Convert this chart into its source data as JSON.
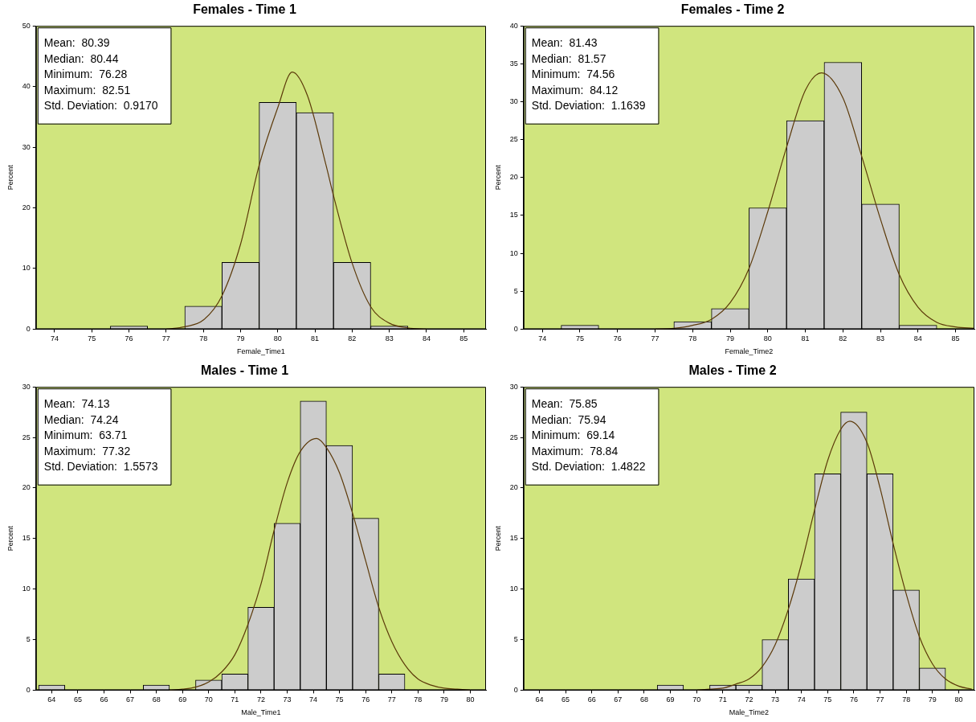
{
  "chart_data": [
    {
      "type": "histogram",
      "title": "Females - Time 1",
      "xlabel": "Female_Time1",
      "ylabel": "Percent",
      "xlim": [
        73.5,
        85.6
      ],
      "xticks": [
        74,
        75,
        76,
        77,
        78,
        79,
        80,
        81,
        82,
        83,
        84,
        85
      ],
      "ylim": [
        0,
        50
      ],
      "yticks": [
        0,
        10,
        20,
        30,
        40,
        50
      ],
      "grid": false,
      "legend": false,
      "marker": "none",
      "annotations": [
        "Mean:  80.39",
        "Median:  80.44",
        "Minimum:  76.28",
        "Maximum:  82.51",
        "Std. Deviation:  0.9170"
      ],
      "series": [
        {
          "type": "histogram",
          "color": "#cccccc",
          "bins": [
            75.5,
            76.5,
            77.5,
            78.5,
            79.5,
            80.5,
            81.5,
            82.5,
            83.5
          ],
          "values": [
            0.5,
            0,
            3.8,
            11,
            37.4,
            35.7,
            11,
            0.5
          ]
        },
        {
          "type": "line",
          "color": "#5c3a0a",
          "x": [
            77,
            77.5,
            78,
            78.5,
            79,
            79.5,
            80,
            80.39,
            80.8,
            81.3,
            81.5,
            82,
            82.5,
            83,
            83.5,
            84
          ],
          "values": [
            0,
            0.4,
            1.5,
            5.5,
            14,
            27,
            36.5,
            42.4,
            38.5,
            27,
            22,
            10.9,
            3.7,
            1,
            0.2,
            0
          ]
        }
      ]
    },
    {
      "type": "histogram",
      "title": "Females - Time 2",
      "xlabel": "Female_Time2",
      "ylabel": "Percent",
      "xlim": [
        73.5,
        85.5
      ],
      "xticks": [
        74,
        75,
        76,
        77,
        78,
        79,
        80,
        81,
        82,
        83,
        84,
        85
      ],
      "ylim": [
        0,
        40
      ],
      "yticks": [
        0,
        5,
        10,
        15,
        20,
        25,
        30,
        35,
        40
      ],
      "grid": false,
      "legend": false,
      "marker": "none",
      "annotations": [
        "Mean:  81.43",
        "Median:  81.57",
        "Minimum:  74.56",
        "Maximum:  84.12",
        "Std. Deviation:  1.1639"
      ],
      "series": [
        {
          "type": "histogram",
          "color": "#cccccc",
          "bins": [
            74.5,
            75.5,
            76.5,
            77.5,
            78.5,
            79.5,
            80.5,
            81.5,
            82.5,
            83.5,
            84.5
          ],
          "values": [
            0.5,
            0,
            0,
            1,
            2.7,
            16,
            27.5,
            35.2,
            16.5,
            0.5
          ]
        },
        {
          "type": "line",
          "color": "#5c3a0a",
          "x": [
            77,
            77.5,
            78,
            78.5,
            79,
            79.5,
            80,
            80.5,
            81,
            81.43,
            82,
            82.5,
            83,
            83.5,
            84,
            84.5,
            85,
            85.5
          ],
          "values": [
            0,
            0.1,
            0.5,
            1.3,
            3.5,
            8,
            15.5,
            24,
            31.5,
            33.8,
            30.5,
            22.8,
            14.5,
            7.2,
            2.9,
            0.9,
            0.3,
            0.1
          ]
        }
      ]
    },
    {
      "type": "histogram",
      "title": "Males - Time 1",
      "xlabel": "Male_Time1",
      "ylabel": "Percent",
      "xlim": [
        63.4,
        80.6
      ],
      "xticks": [
        64,
        65,
        66,
        67,
        68,
        69,
        70,
        71,
        72,
        73,
        74,
        75,
        76,
        77,
        78,
        79,
        80
      ],
      "ylim": [
        0,
        30
      ],
      "yticks": [
        0,
        5,
        10,
        15,
        20,
        25,
        30
      ],
      "grid": false,
      "legend": false,
      "marker": "none",
      "annotations": [
        "Mean:  74.13",
        "Median:  74.24",
        "Minimum:  63.71",
        "Maximum:  77.32",
        "Std. Deviation:  1.5573"
      ],
      "series": [
        {
          "type": "histogram",
          "color": "#cccccc",
          "bins": [
            63.5,
            64.5,
            65.5,
            66.5,
            67.5,
            68.5,
            69.5,
            70.5,
            71.5,
            72.5,
            73.5,
            74.5,
            75.5,
            76.5,
            77.5
          ],
          "values": [
            0.5,
            0,
            0,
            0,
            0.5,
            0,
            1,
            1.6,
            8.2,
            16.5,
            28.6,
            24.2,
            17,
            1.6
          ]
        },
        {
          "type": "line",
          "color": "#5c3a0a",
          "x": [
            68.5,
            69,
            69.5,
            70,
            70.5,
            71,
            71.5,
            72,
            72.5,
            73,
            73.5,
            74.13,
            74.5,
            75,
            75.5,
            76,
            76.5,
            77,
            77.5,
            78,
            78.5,
            79,
            79.5,
            80
          ],
          "values": [
            0,
            0.1,
            0.3,
            0.8,
            1.8,
            3.5,
            6.5,
            10.5,
            15.8,
            20.5,
            23.6,
            24.9,
            24,
            21.5,
            17.5,
            12.8,
            8.2,
            4.8,
            2.5,
            1.1,
            0.5,
            0.2,
            0.1,
            0
          ]
        }
      ]
    },
    {
      "type": "histogram",
      "title": "Males - Time 2",
      "xlabel": "Male_Time2",
      "ylabel": "Percent",
      "xlim": [
        63.4,
        80.6
      ],
      "xticks": [
        64,
        65,
        66,
        67,
        68,
        69,
        70,
        71,
        72,
        73,
        74,
        75,
        76,
        77,
        78,
        79,
        80
      ],
      "ylim": [
        0,
        30
      ],
      "yticks": [
        0,
        5,
        10,
        15,
        20,
        25,
        30
      ],
      "grid": false,
      "legend": false,
      "marker": "none",
      "annotations": [
        "Mean:  75.85",
        "Median:  75.94",
        "Minimum:  69.14",
        "Maximum:  78.84",
        "Std. Deviation:  1.4822"
      ],
      "series": [
        {
          "type": "histogram",
          "color": "#cccccc",
          "bins": [
            68.5,
            69.5,
            70.5,
            71.5,
            72.5,
            73.5,
            74.5,
            75.5,
            76.5,
            77.5,
            78.5,
            79.5
          ],
          "values": [
            0.5,
            0,
            0.5,
            0.5,
            5,
            11,
            21.4,
            27.5,
            21.4,
            9.9,
            2.2
          ]
        },
        {
          "type": "line",
          "color": "#5c3a0a",
          "x": [
            70,
            70.5,
            71,
            71.5,
            72,
            72.5,
            73,
            73.5,
            74,
            74.5,
            75,
            75.5,
            75.85,
            76.5,
            77,
            77.5,
            78,
            78.5,
            79,
            79.5,
            80,
            80.5
          ],
          "values": [
            0,
            0.1,
            0.2,
            0.6,
            1.1,
            2.3,
            4.5,
            8,
            12.5,
            17.8,
            22.7,
            25.8,
            26.6,
            24.5,
            20,
            14.5,
            9.5,
            5.3,
            2.6,
            1.1,
            0.4,
            0.1
          ]
        }
      ]
    }
  ]
}
